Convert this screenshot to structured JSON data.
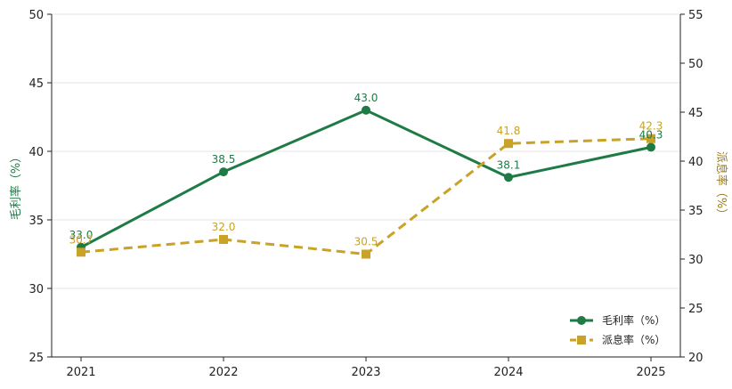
{
  "chart_data": {
    "type": "line",
    "categories": [
      "2021",
      "2022",
      "2023",
      "2024",
      "2025"
    ],
    "series": [
      {
        "name": "毛利率（%）",
        "axis": "left",
        "values": [
          33.0,
          38.5,
          43.0,
          38.1,
          40.3
        ],
        "labels": [
          "33.0",
          "38.5",
          "43.0",
          "38.1",
          "40.3"
        ],
        "color": "#1e7b45",
        "line_style": "solid",
        "marker": "circle"
      },
      {
        "name": "派息率（%）",
        "axis": "right",
        "values": [
          30.7,
          32.0,
          30.5,
          41.8,
          42.3
        ],
        "labels": [
          "30.7",
          "32.0",
          "30.5",
          "41.8",
          "42.3"
        ],
        "color": "#c9a227",
        "line_style": "dashed",
        "marker": "square"
      }
    ],
    "y_left": {
      "label": "毛利率（%）",
      "ylim": [
        25,
        50
      ],
      "ticks": [
        "25",
        "30",
        "35",
        "40",
        "45",
        "50"
      ],
      "color": "#1e7b45"
    },
    "y_right": {
      "label": "派息率（%）",
      "ylim": [
        20,
        55
      ],
      "ticks": [
        "20",
        "25",
        "30",
        "35",
        "40",
        "45",
        "50",
        "55"
      ],
      "color": "#9a7b1c"
    },
    "grid": true,
    "legend_position": "bottom-right"
  }
}
